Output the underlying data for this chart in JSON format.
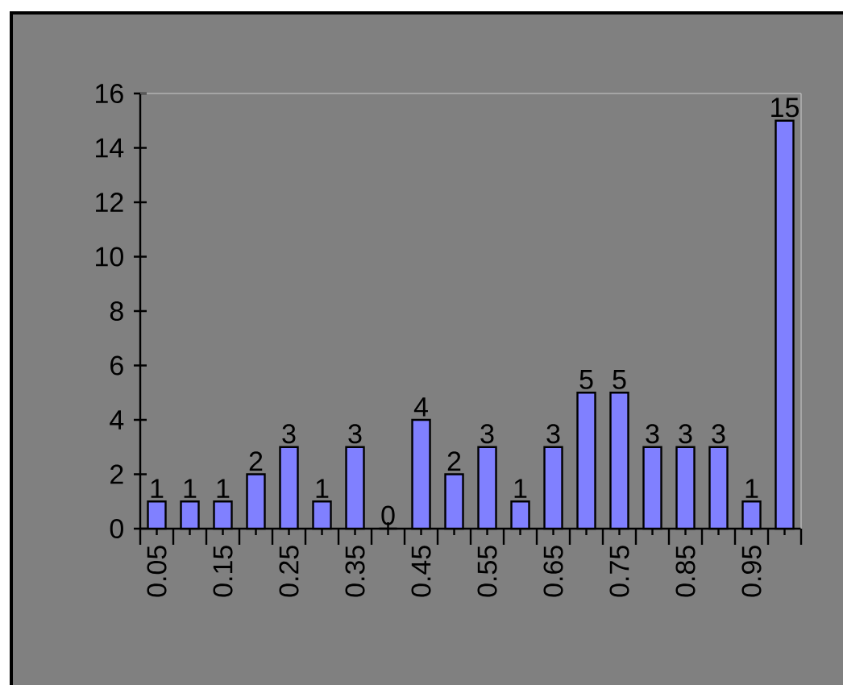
{
  "chart_data": {
    "type": "bar",
    "categories": [
      "0.05",
      null,
      "0.15",
      null,
      "0.25",
      null,
      "0.35",
      null,
      "0.45",
      null,
      "0.55",
      null,
      "0.65",
      null,
      "0.75",
      null,
      "0.85",
      null,
      "0.95",
      null
    ],
    "values": [
      1,
      1,
      1,
      2,
      3,
      1,
      3,
      0,
      4,
      2,
      3,
      1,
      3,
      5,
      5,
      3,
      3,
      3,
      1,
      15
    ],
    "color": "#8080ff",
    "ylim": [
      0,
      16
    ],
    "yticks": [
      0,
      2,
      4,
      6,
      8,
      10,
      12,
      14,
      16
    ],
    "data_labels": true,
    "grid": false
  }
}
